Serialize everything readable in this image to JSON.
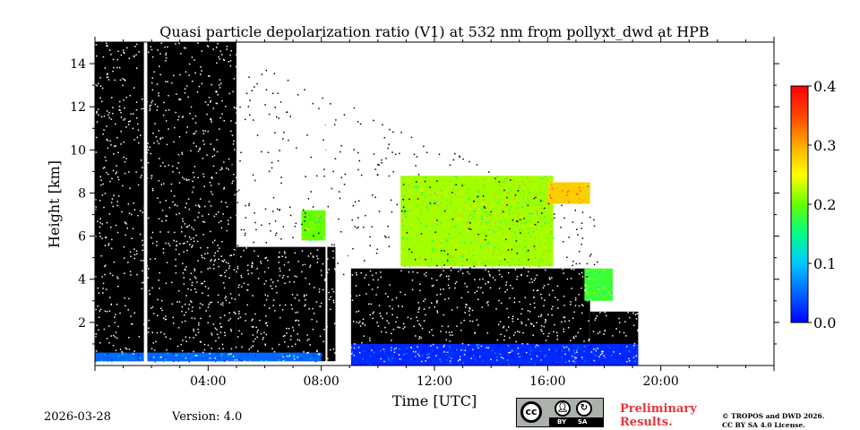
{
  "chart_data": {
    "type": "heatmap",
    "title": "Quasi particle depolarization ratio (V1) at 532 nm from pollyxt_dwd at HPB",
    "xlabel": "Time [UTC]",
    "ylabel": "Height [km]",
    "x_range_hours": [
      0,
      24
    ],
    "y_range_km": [
      0,
      15
    ],
    "x_ticks": [
      {
        "value": 4,
        "label": "04:00"
      },
      {
        "value": 8,
        "label": "08:00"
      },
      {
        "value": 12,
        "label": "12:00"
      },
      {
        "value": 16,
        "label": "16:00"
      },
      {
        "value": 20,
        "label": "20:00"
      }
    ],
    "y_ticks": [
      {
        "value": 2,
        "label": "2"
      },
      {
        "value": 4,
        "label": "4"
      },
      {
        "value": 6,
        "label": "6"
      },
      {
        "value": 8,
        "label": "8"
      },
      {
        "value": 10,
        "label": "10"
      },
      {
        "value": 12,
        "label": "12"
      },
      {
        "value": 14,
        "label": "14"
      }
    ],
    "colorbar": {
      "range": [
        0.0,
        0.4
      ],
      "ticks": [
        {
          "value": 0.0,
          "label": "0.0"
        },
        {
          "value": 0.1,
          "label": "0.1"
        },
        {
          "value": 0.2,
          "label": "0.2"
        },
        {
          "value": 0.3,
          "label": "0.3"
        },
        {
          "value": 0.4,
          "label": "0.4"
        }
      ],
      "colors": [
        "#0000ff",
        "#0066ff",
        "#00c8ff",
        "#00ff88",
        "#66ff00",
        "#ffff00",
        "#ffaa00",
        "#ff4400",
        "#ff0000"
      ]
    },
    "regions": [
      {
        "name": "no-signal-night",
        "t0": 0.0,
        "t1": 5.0,
        "h0": 0.2,
        "h1": 15.0,
        "kind": "nodata"
      },
      {
        "name": "no-signal-morning",
        "t0": 5.0,
        "t1": 8.5,
        "h0": 0.2,
        "h1": 5.5,
        "kind": "nodata"
      },
      {
        "name": "no-signal-midday",
        "t0": 9.0,
        "t1": 17.5,
        "h0": 0.2,
        "h1": 4.5,
        "kind": "nodata"
      },
      {
        "name": "no-signal-evening",
        "t0": 17.5,
        "t1": 19.2,
        "h0": 0.2,
        "h1": 2.5,
        "kind": "nodata"
      },
      {
        "name": "aerosol-layer-morning",
        "t0": 7.3,
        "t1": 8.2,
        "h0": 5.8,
        "h1": 7.2,
        "kind": "depol",
        "value": 0.2
      },
      {
        "name": "aerosol-layer-main",
        "t0": 10.8,
        "t1": 16.2,
        "h0": 4.6,
        "h1": 8.8,
        "kind": "depol",
        "value": 0.22
      },
      {
        "name": "aerosol-layer-upper",
        "t0": 16.0,
        "t1": 17.5,
        "h0": 7.5,
        "h1": 8.5,
        "kind": "depol",
        "value": 0.28
      },
      {
        "name": "aerosol-layer-descending",
        "t0": 17.3,
        "t1": 18.3,
        "h0": 3.0,
        "h1": 4.5,
        "kind": "depol",
        "value": 0.18
      },
      {
        "name": "boundary-layer",
        "t0": 9.0,
        "t1": 19.2,
        "h0": 0.0,
        "h1": 1.0,
        "kind": "depol",
        "value": 0.02
      },
      {
        "name": "surface-layer-night",
        "t0": 0.0,
        "t1": 8.0,
        "h0": 0.2,
        "h1": 0.6,
        "kind": "depol",
        "value": 0.05
      }
    ],
    "gaps": [
      {
        "t0": 1.73,
        "t1": 1.85
      },
      {
        "t0": 8.15,
        "t1": 8.2
      },
      {
        "t0": 8.95,
        "t1": 9.05
      }
    ]
  },
  "footer": {
    "date": "2026-03-28",
    "version": "Version: 4.0",
    "preliminary_line1": "Preliminary",
    "preliminary_line2": "Results.",
    "license_line1": "© TROPOS and DWD 2026.",
    "license_line2": "CC BY SA 4.0 License.",
    "cc_text": "cc",
    "by_text": "BY",
    "sa_text": "SA"
  },
  "colors": {
    "nodata": "#000000",
    "background": "#ffffff",
    "preliminary": "#e8343a"
  }
}
